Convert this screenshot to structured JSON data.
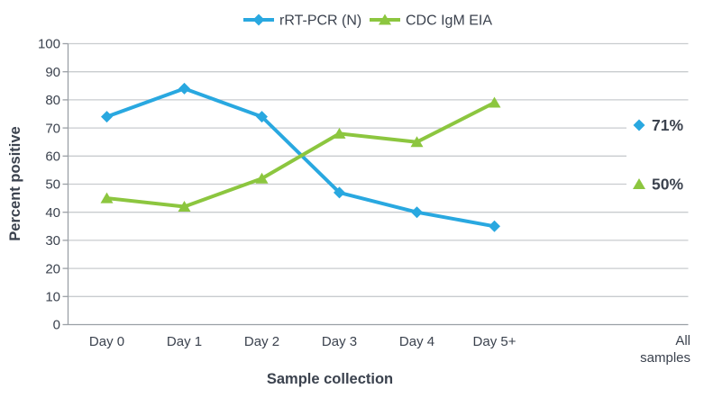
{
  "chart_data": {
    "type": "line",
    "categories": [
      "Day 0",
      "Day 1",
      "Day 2",
      "Day 3",
      "Day 4",
      "Day 5+"
    ],
    "series": [
      {
        "name": "rRT-PCR (N)",
        "marker": "diamond",
        "color": "#29A8E0",
        "values": [
          74,
          84,
          74,
          47,
          40,
          35
        ],
        "overall": {
          "label": "71%",
          "value": 71
        }
      },
      {
        "name": "CDC IgM EIA",
        "marker": "triangle",
        "color": "#8CC63F",
        "values": [
          45,
          42,
          52,
          68,
          65,
          79
        ],
        "overall": {
          "label": "50%",
          "value": 50
        }
      }
    ],
    "xlabel": "Sample collection",
    "ylabel": "Percent positive",
    "ylim": [
      0,
      100
    ],
    "ytick_step": 10,
    "y_ticks": [
      0,
      10,
      20,
      30,
      40,
      50,
      60,
      70,
      80,
      90,
      100
    ],
    "extra_category_lines": [
      "All",
      "samples"
    ],
    "grid": true,
    "legend_position": "top"
  },
  "palette": {
    "text": "#3B424E",
    "grid": "#C9CCCF",
    "axis": "#9BA0A6"
  }
}
